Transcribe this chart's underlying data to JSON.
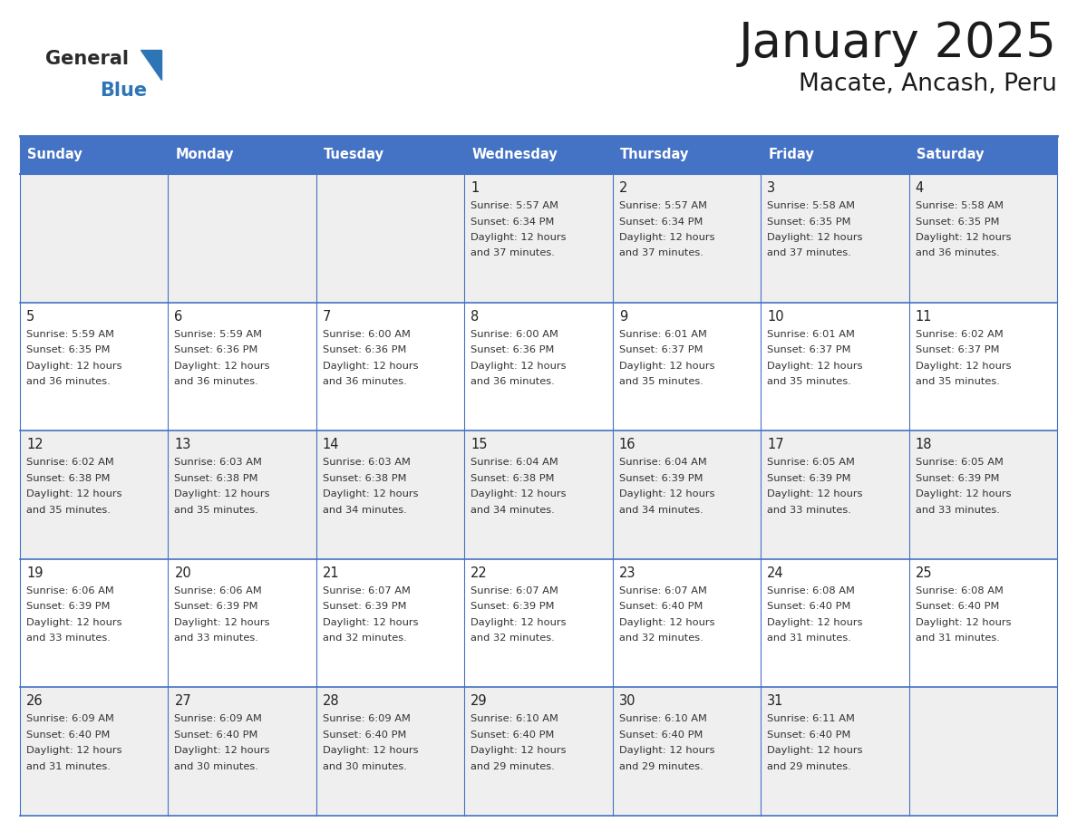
{
  "title": "January 2025",
  "subtitle": "Macate, Ancash, Peru",
  "header_bg": "#4472C4",
  "header_text_color": "#FFFFFF",
  "cell_bg_odd": "#EFEFEF",
  "cell_bg_even": "#FFFFFF",
  "border_color": "#4472C4",
  "day_names": [
    "Sunday",
    "Monday",
    "Tuesday",
    "Wednesday",
    "Thursday",
    "Friday",
    "Saturday"
  ],
  "logo_general_color": "#2B2B2B",
  "logo_blue_color": "#2E75B6",
  "logo_triangle_color": "#2E75B6",
  "days": [
    {
      "day": 1,
      "col": 3,
      "row": 0,
      "sunrise": "5:57 AM",
      "sunset": "6:34 PM",
      "daylight_hours": 12,
      "daylight_minutes": 37
    },
    {
      "day": 2,
      "col": 4,
      "row": 0,
      "sunrise": "5:57 AM",
      "sunset": "6:34 PM",
      "daylight_hours": 12,
      "daylight_minutes": 37
    },
    {
      "day": 3,
      "col": 5,
      "row": 0,
      "sunrise": "5:58 AM",
      "sunset": "6:35 PM",
      "daylight_hours": 12,
      "daylight_minutes": 37
    },
    {
      "day": 4,
      "col": 6,
      "row": 0,
      "sunrise": "5:58 AM",
      "sunset": "6:35 PM",
      "daylight_hours": 12,
      "daylight_minutes": 36
    },
    {
      "day": 5,
      "col": 0,
      "row": 1,
      "sunrise": "5:59 AM",
      "sunset": "6:35 PM",
      "daylight_hours": 12,
      "daylight_minutes": 36
    },
    {
      "day": 6,
      "col": 1,
      "row": 1,
      "sunrise": "5:59 AM",
      "sunset": "6:36 PM",
      "daylight_hours": 12,
      "daylight_minutes": 36
    },
    {
      "day": 7,
      "col": 2,
      "row": 1,
      "sunrise": "6:00 AM",
      "sunset": "6:36 PM",
      "daylight_hours": 12,
      "daylight_minutes": 36
    },
    {
      "day": 8,
      "col": 3,
      "row": 1,
      "sunrise": "6:00 AM",
      "sunset": "6:36 PM",
      "daylight_hours": 12,
      "daylight_minutes": 36
    },
    {
      "day": 9,
      "col": 4,
      "row": 1,
      "sunrise": "6:01 AM",
      "sunset": "6:37 PM",
      "daylight_hours": 12,
      "daylight_minutes": 35
    },
    {
      "day": 10,
      "col": 5,
      "row": 1,
      "sunrise": "6:01 AM",
      "sunset": "6:37 PM",
      "daylight_hours": 12,
      "daylight_minutes": 35
    },
    {
      "day": 11,
      "col": 6,
      "row": 1,
      "sunrise": "6:02 AM",
      "sunset": "6:37 PM",
      "daylight_hours": 12,
      "daylight_minutes": 35
    },
    {
      "day": 12,
      "col": 0,
      "row": 2,
      "sunrise": "6:02 AM",
      "sunset": "6:38 PM",
      "daylight_hours": 12,
      "daylight_minutes": 35
    },
    {
      "day": 13,
      "col": 1,
      "row": 2,
      "sunrise": "6:03 AM",
      "sunset": "6:38 PM",
      "daylight_hours": 12,
      "daylight_minutes": 35
    },
    {
      "day": 14,
      "col": 2,
      "row": 2,
      "sunrise": "6:03 AM",
      "sunset": "6:38 PM",
      "daylight_hours": 12,
      "daylight_minutes": 34
    },
    {
      "day": 15,
      "col": 3,
      "row": 2,
      "sunrise": "6:04 AM",
      "sunset": "6:38 PM",
      "daylight_hours": 12,
      "daylight_minutes": 34
    },
    {
      "day": 16,
      "col": 4,
      "row": 2,
      "sunrise": "6:04 AM",
      "sunset": "6:39 PM",
      "daylight_hours": 12,
      "daylight_minutes": 34
    },
    {
      "day": 17,
      "col": 5,
      "row": 2,
      "sunrise": "6:05 AM",
      "sunset": "6:39 PM",
      "daylight_hours": 12,
      "daylight_minutes": 33
    },
    {
      "day": 18,
      "col": 6,
      "row": 2,
      "sunrise": "6:05 AM",
      "sunset": "6:39 PM",
      "daylight_hours": 12,
      "daylight_minutes": 33
    },
    {
      "day": 19,
      "col": 0,
      "row": 3,
      "sunrise": "6:06 AM",
      "sunset": "6:39 PM",
      "daylight_hours": 12,
      "daylight_minutes": 33
    },
    {
      "day": 20,
      "col": 1,
      "row": 3,
      "sunrise": "6:06 AM",
      "sunset": "6:39 PM",
      "daylight_hours": 12,
      "daylight_minutes": 33
    },
    {
      "day": 21,
      "col": 2,
      "row": 3,
      "sunrise": "6:07 AM",
      "sunset": "6:39 PM",
      "daylight_hours": 12,
      "daylight_minutes": 32
    },
    {
      "day": 22,
      "col": 3,
      "row": 3,
      "sunrise": "6:07 AM",
      "sunset": "6:39 PM",
      "daylight_hours": 12,
      "daylight_minutes": 32
    },
    {
      "day": 23,
      "col": 4,
      "row": 3,
      "sunrise": "6:07 AM",
      "sunset": "6:40 PM",
      "daylight_hours": 12,
      "daylight_minutes": 32
    },
    {
      "day": 24,
      "col": 5,
      "row": 3,
      "sunrise": "6:08 AM",
      "sunset": "6:40 PM",
      "daylight_hours": 12,
      "daylight_minutes": 31
    },
    {
      "day": 25,
      "col": 6,
      "row": 3,
      "sunrise": "6:08 AM",
      "sunset": "6:40 PM",
      "daylight_hours": 12,
      "daylight_minutes": 31
    },
    {
      "day": 26,
      "col": 0,
      "row": 4,
      "sunrise": "6:09 AM",
      "sunset": "6:40 PM",
      "daylight_hours": 12,
      "daylight_minutes": 31
    },
    {
      "day": 27,
      "col": 1,
      "row": 4,
      "sunrise": "6:09 AM",
      "sunset": "6:40 PM",
      "daylight_hours": 12,
      "daylight_minutes": 30
    },
    {
      "day": 28,
      "col": 2,
      "row": 4,
      "sunrise": "6:09 AM",
      "sunset": "6:40 PM",
      "daylight_hours": 12,
      "daylight_minutes": 30
    },
    {
      "day": 29,
      "col": 3,
      "row": 4,
      "sunrise": "6:10 AM",
      "sunset": "6:40 PM",
      "daylight_hours": 12,
      "daylight_minutes": 29
    },
    {
      "day": 30,
      "col": 4,
      "row": 4,
      "sunrise": "6:10 AM",
      "sunset": "6:40 PM",
      "daylight_hours": 12,
      "daylight_minutes": 29
    },
    {
      "day": 31,
      "col": 5,
      "row": 4,
      "sunrise": "6:11 AM",
      "sunset": "6:40 PM",
      "daylight_hours": 12,
      "daylight_minutes": 29
    }
  ]
}
